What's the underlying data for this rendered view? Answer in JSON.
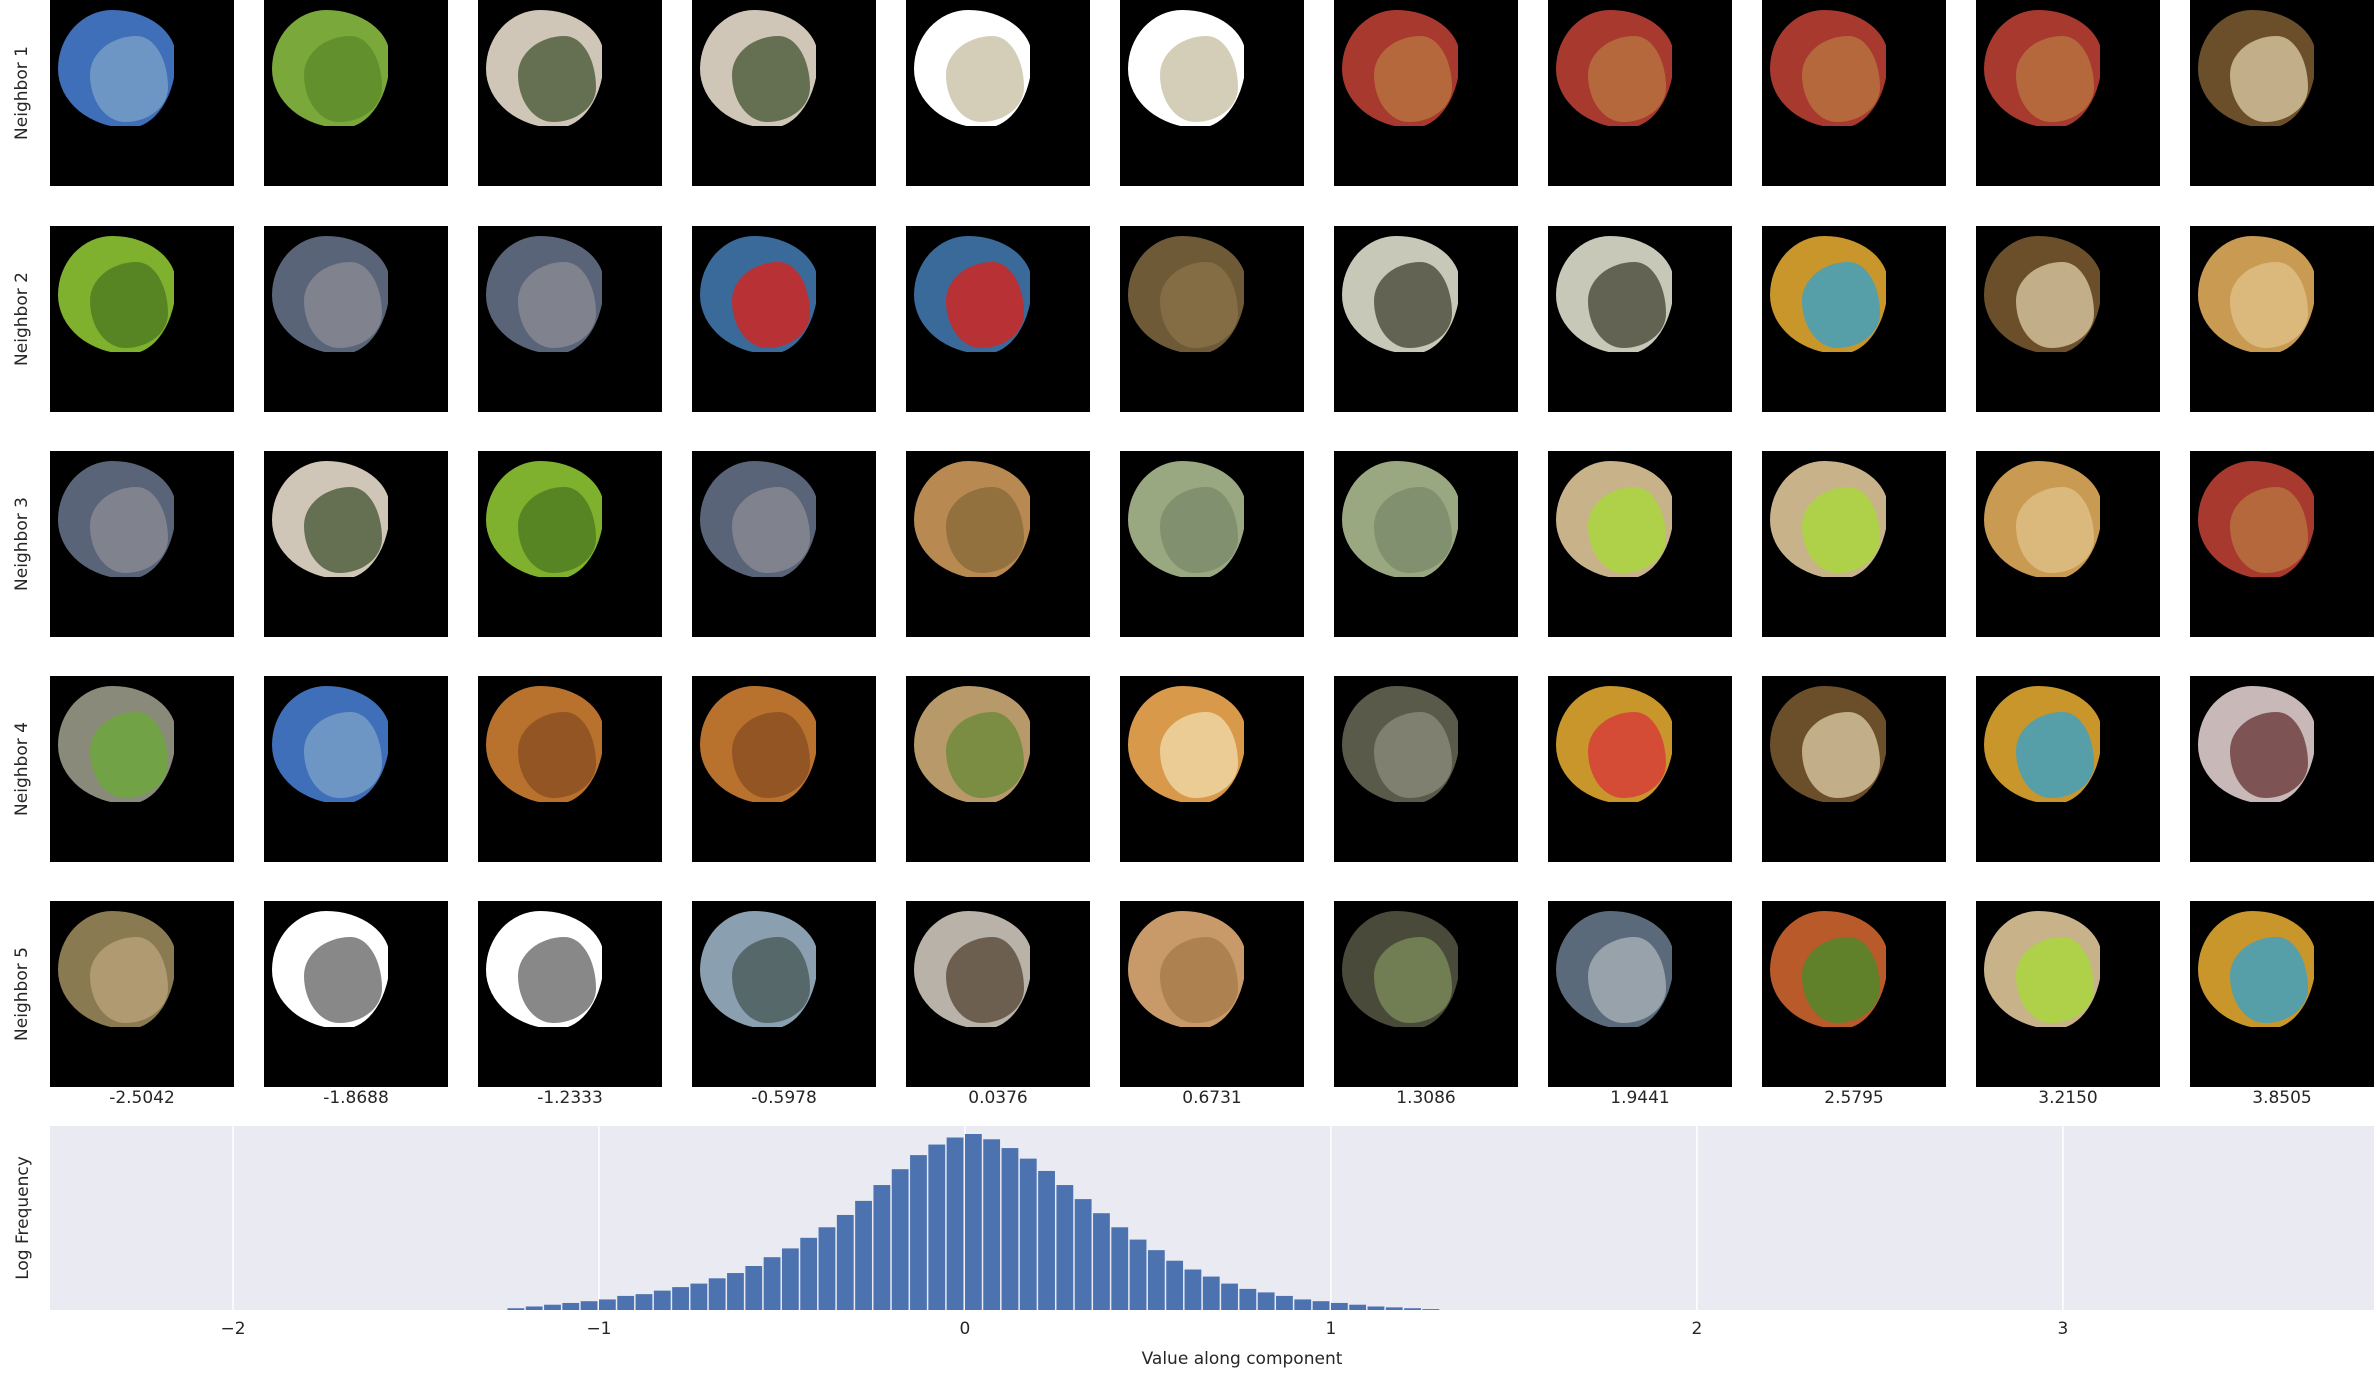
{
  "rows": [
    "Neighbor 1",
    "Neighbor 2",
    "Neighbor 3",
    "Neighbor 4",
    "Neighbor 5"
  ],
  "columns": [
    "-2.5042",
    "-1.8688",
    "-1.2333",
    "-0.5978",
    "0.0376",
    "0.6731",
    "1.3086",
    "1.9441",
    "2.5795",
    "3.2150",
    "3.8505"
  ],
  "thumbnails": [
    [
      {
        "c": "#3f6fb8",
        "c2": "#7aa0c8"
      },
      {
        "c": "#7aa83a",
        "c2": "#5c8a2a"
      },
      {
        "c": "#cfc6b8",
        "c2": "#4a5a3a"
      },
      {
        "c": "#cfc6b8",
        "c2": "#4a5a3a"
      },
      {
        "c": "#ffffff",
        "c2": "#c9c2a8"
      },
      {
        "c": "#ffffff",
        "c2": "#c9c2a8"
      },
      {
        "c": "#a8392e",
        "c2": "#b8743e"
      },
      {
        "c": "#a8392e",
        "c2": "#b8743e"
      },
      {
        "c": "#a8392e",
        "c2": "#b8743e"
      },
      {
        "c": "#a8392e",
        "c2": "#b8743e"
      },
      {
        "c": "#6b4f2a",
        "c2": "#d8c6a0"
      }
    ],
    [
      {
        "c": "#7fb02e",
        "c2": "#4e7a20"
      },
      {
        "c": "#5a6478",
        "c2": "#8a8a94"
      },
      {
        "c": "#5a6478",
        "c2": "#8a8a94"
      },
      {
        "c": "#3a6a9a",
        "c2": "#d8231c"
      },
      {
        "c": "#3a6a9a",
        "c2": "#d8231c"
      },
      {
        "c": "#6e5a36",
        "c2": "#8a7248"
      },
      {
        "c": "#c8c8b8",
        "c2": "#4a4a3a"
      },
      {
        "c": "#c8c8b8",
        "c2": "#4a4a3a"
      },
      {
        "c": "#c8962a",
        "c2": "#3aa0c8"
      },
      {
        "c": "#6b4f2a",
        "c2": "#d8c6a0"
      },
      {
        "c": "#c89a52",
        "c2": "#e0c088"
      }
    ],
    [
      {
        "c": "#5a6478",
        "c2": "#8a8a94"
      },
      {
        "c": "#cfc6b8",
        "c2": "#4a5a3a"
      },
      {
        "c": "#7fb02e",
        "c2": "#4e7a20"
      },
      {
        "c": "#5a6478",
        "c2": "#8a8a94"
      },
      {
        "c": "#b88a52",
        "c2": "#8a6a3a"
      },
      {
        "c": "#9aa882",
        "c2": "#7a8a6a"
      },
      {
        "c": "#9aa882",
        "c2": "#7a8a6a"
      },
      {
        "c": "#c8b28a",
        "c2": "#a8d838"
      },
      {
        "c": "#c8b28a",
        "c2": "#a8d838"
      },
      {
        "c": "#c89a52",
        "c2": "#e0c088"
      },
      {
        "c": "#a8392e",
        "c2": "#b8743e"
      }
    ],
    [
      {
        "c": "#8a8a7a",
        "c2": "#6aa83a"
      },
      {
        "c": "#3f6fb8",
        "c2": "#7aa0c8"
      },
      {
        "c": "#b8722e",
        "c2": "#8a4e20"
      },
      {
        "c": "#b8722e",
        "c2": "#8a4e20"
      },
      {
        "c": "#b89a6a",
        "c2": "#6a8a3a"
      },
      {
        "c": "#d89a4a",
        "c2": "#f0d8a8"
      },
      {
        "c": "#5a5a4a",
        "c2": "#8a8a7a"
      },
      {
        "c": "#c8962a",
        "c2": "#d83a3a"
      },
      {
        "c": "#6b4f2a",
        "c2": "#d8c6a0"
      },
      {
        "c": "#c8962a",
        "c2": "#3aa0c8"
      },
      {
        "c": "#c8b8b8",
        "c2": "#6a3a3a"
      }
    ],
    [
      {
        "c": "#8a7a52",
        "c2": "#b8a27a"
      },
      {
        "c": "#ffffff",
        "c2": "#6a6a6a"
      },
      {
        "c": "#ffffff",
        "c2": "#6a6a6a"
      },
      {
        "c": "#8aa0b0",
        "c2": "#4a5a5a"
      },
      {
        "c": "#b8b2a8",
        "c2": "#5a4a3a"
      },
      {
        "c": "#c89a6a",
        "c2": "#a87a4a"
      },
      {
        "c": "#4a4a3a",
        "c2": "#7a8a5a"
      },
      {
        "c": "#5a6a7a",
        "c2": "#a8b0b8"
      },
      {
        "c": "#b85a2a",
        "c2": "#4a8a2a"
      },
      {
        "c": "#c8b28a",
        "c2": "#a8d838"
      },
      {
        "c": "#c8962a",
        "c2": "#3aa0c8"
      }
    ]
  ],
  "chart_data": {
    "type": "bar",
    "ylabel": "Log Frequency",
    "xlabel": "Value along component",
    "xticks": [
      -2,
      -1,
      0,
      1,
      2,
      3
    ],
    "xlim": [
      -2.5,
      3.85
    ],
    "grid": true,
    "bar_color": "#4c72b0",
    "background": "#eaeaf2",
    "bins": {
      "x": [
        -1.225,
        -1.175,
        -1.125,
        -1.075,
        -1.025,
        -0.975,
        -0.925,
        -0.875,
        -0.825,
        -0.775,
        -0.725,
        -0.675,
        -0.625,
        -0.575,
        -0.525,
        -0.475,
        -0.425,
        -0.375,
        -0.325,
        -0.275,
        -0.225,
        -0.175,
        -0.125,
        -0.075,
        -0.025,
        0.025,
        0.075,
        0.125,
        0.175,
        0.225,
        0.275,
        0.325,
        0.375,
        0.425,
        0.475,
        0.525,
        0.575,
        0.625,
        0.675,
        0.725,
        0.775,
        0.825,
        0.875,
        0.925,
        0.975,
        1.025,
        1.075,
        1.125,
        1.175,
        1.225,
        1.275
      ],
      "y": [
        0.01,
        0.02,
        0.03,
        0.04,
        0.05,
        0.06,
        0.08,
        0.09,
        0.11,
        0.13,
        0.15,
        0.18,
        0.21,
        0.25,
        0.3,
        0.35,
        0.41,
        0.47,
        0.54,
        0.62,
        0.71,
        0.8,
        0.88,
        0.94,
        0.98,
        1.0,
        0.97,
        0.92,
        0.86,
        0.79,
        0.71,
        0.63,
        0.55,
        0.47,
        0.4,
        0.34,
        0.28,
        0.23,
        0.19,
        0.15,
        0.12,
        0.1,
        0.08,
        0.06,
        0.05,
        0.04,
        0.03,
        0.02,
        0.015,
        0.01,
        0.005
      ]
    }
  }
}
